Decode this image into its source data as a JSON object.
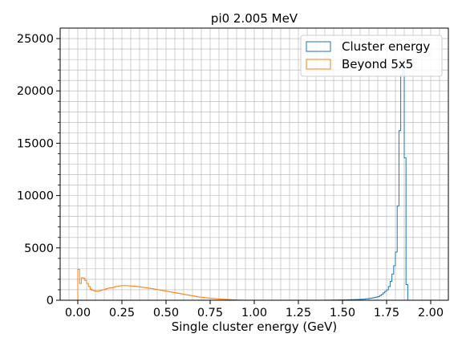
{
  "chart_data": {
    "type": "histogram-step",
    "title": "pi0 2.005 MeV",
    "xlabel": "Single cluster energy (GeV)",
    "ylabel": "",
    "xlim": [
      -0.1,
      2.1
    ],
    "ylim": [
      0,
      26000
    ],
    "grid": true,
    "minor_grid": true,
    "legend_position": "top-right",
    "x_ticks": [
      0.0,
      0.25,
      0.5,
      0.75,
      1.0,
      1.25,
      1.5,
      1.75,
      2.0
    ],
    "x_tick_labels": [
      "0.00",
      "0.25",
      "0.50",
      "0.75",
      "1.00",
      "1.25",
      "1.50",
      "1.75",
      "2.00"
    ],
    "y_ticks": [
      0,
      5000,
      10000,
      15000,
      20000,
      25000
    ],
    "y_tick_labels": [
      "0",
      "5000",
      "10000",
      "15000",
      "20000",
      "25000"
    ],
    "bin_width": 0.01,
    "series": [
      {
        "name": "Cluster energy",
        "color": "#1f77b4",
        "bin_start": 1.4,
        "counts": [
          5,
          8,
          10,
          12,
          15,
          18,
          20,
          22,
          25,
          28,
          30,
          35,
          40,
          45,
          50,
          55,
          60,
          65,
          70,
          80,
          90,
          100,
          110,
          130,
          150,
          170,
          200,
          230,
          260,
          300,
          350,
          450,
          550,
          700,
          850,
          1000,
          1300,
          1800,
          2500,
          3300,
          4600,
          9000,
          16200,
          21500,
          22500,
          13600,
          1500,
          0
        ]
      },
      {
        "name": "Beyond 5x5",
        "color": "#ff7f0e",
        "bin_start": 0.0,
        "counts": [
          2950,
          1600,
          2150,
          2100,
          1900,
          1600,
          1300,
          1050,
          950,
          900,
          880,
          870,
          900,
          950,
          1000,
          1050,
          1100,
          1150,
          1180,
          1200,
          1250,
          1300,
          1330,
          1360,
          1380,
          1400,
          1400,
          1390,
          1380,
          1370,
          1350,
          1350,
          1330,
          1310,
          1290,
          1270,
          1250,
          1230,
          1200,
          1180,
          1150,
          1120,
          1100,
          1070,
          1040,
          1010,
          980,
          950,
          920,
          890,
          860,
          830,
          800,
          770,
          740,
          710,
          680,
          650,
          620,
          590,
          560,
          530,
          500,
          470,
          440,
          410,
          380,
          350,
          320,
          300,
          280,
          260,
          240,
          220,
          200,
          185,
          170,
          155,
          140,
          130,
          120,
          110,
          100,
          90,
          80,
          70,
          60,
          50,
          40,
          30,
          20,
          15,
          10,
          5,
          0
        ]
      }
    ]
  }
}
